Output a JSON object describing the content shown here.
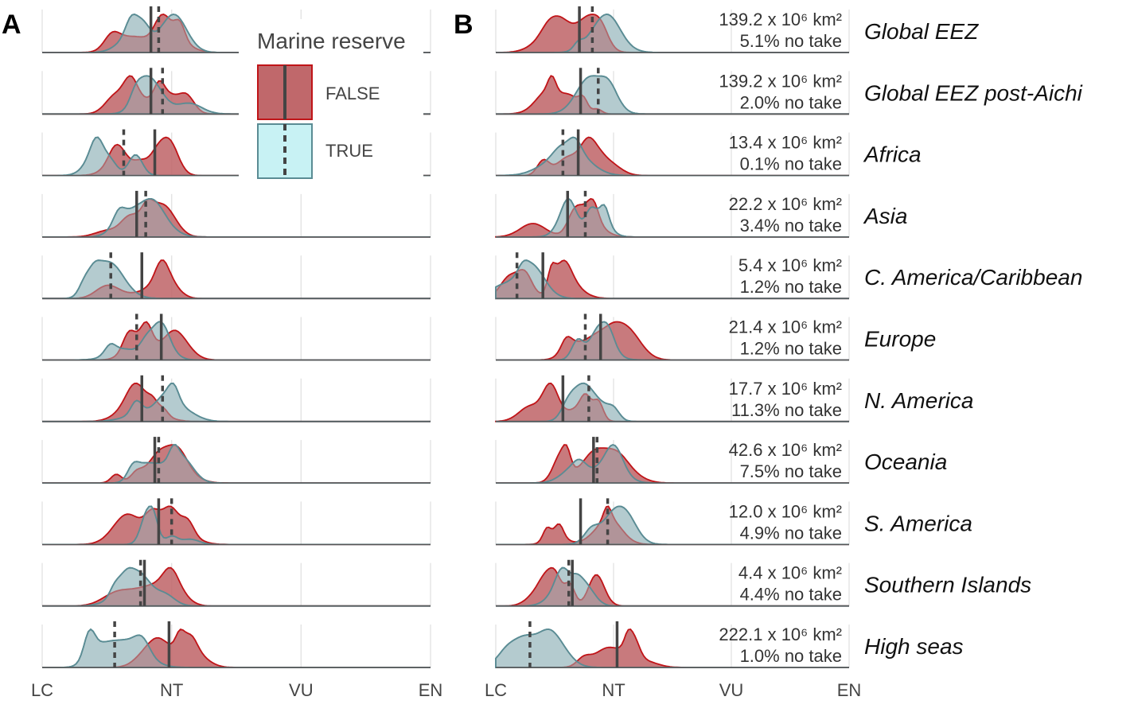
{
  "panels": {
    "A": {
      "letter": "A"
    },
    "B": {
      "letter": "B"
    }
  },
  "legend": {
    "title": "Marine reserve",
    "items": [
      {
        "label": "FALSE",
        "fill": "#c0686b",
        "stroke": "#c01418",
        "line": "solid"
      },
      {
        "label": "TRUE",
        "fill": "#c8f2f4",
        "stroke": "#5a8c94",
        "line": "dashed"
      }
    ]
  },
  "colors": {
    "false_fill": "#c0686b",
    "false_stroke": "#c01418",
    "true_fill": "#c8f2f4",
    "true_stroke": "#5a8c94",
    "overlap_fill": "#a4abb0",
    "median_line": "#444444",
    "grid": "#e3e3e3"
  },
  "chart_data": {
    "type": "area",
    "x_axis": {
      "ticks": [
        "LC",
        "NT",
        "VU",
        "EN"
      ],
      "range": [
        "LC",
        "EN"
      ]
    },
    "rows": [
      {
        "region": "Global EEZ",
        "stat_line1": "139.2 x 10⁶ km²",
        "stat_line2": "5.1% no take"
      },
      {
        "region": "Global EEZ post-Aichi",
        "stat_line1": "139.2 x 10⁶ km²",
        "stat_line2": "2.0% no take"
      },
      {
        "region": "Africa",
        "stat_line1": "13.4 x 10⁶ km²",
        "stat_line2": "0.1% no take"
      },
      {
        "region": "Asia",
        "stat_line1": "22.2 x 10⁶ km²",
        "stat_line2": "3.4% no take"
      },
      {
        "region": "C. America/Caribbean",
        "stat_line1": "5.4 x 10⁶ km²",
        "stat_line2": "1.2% no take"
      },
      {
        "region": "Europe",
        "stat_line1": "21.4 x 10⁶ km²",
        "stat_line2": "1.2% no take"
      },
      {
        "region": "N. America",
        "stat_line1": "17.7 x 10⁶ km²",
        "stat_line2": "11.3% no take"
      },
      {
        "region": "Oceania",
        "stat_line1": "42.6 x 10⁶ km²",
        "stat_line2": "7.5% no take"
      },
      {
        "region": "S. America",
        "stat_line1": "12.0 x 10⁶ km²",
        "stat_line2": "4.9% no take"
      },
      {
        "region": "Southern Islands",
        "stat_line1": "4.4 x 10⁶ km²",
        "stat_line2": "4.4% no take"
      },
      {
        "region": "High seas",
        "stat_line1": "222.1 x 10⁶ km²",
        "stat_line2": "1.0% no take"
      }
    ],
    "panel_A_medians": [
      {
        "false": 1.84,
        "true": 1.9
      },
      {
        "false": 1.84,
        "true": 1.93
      },
      {
        "false": 1.87,
        "true": 1.63
      },
      {
        "false": 1.73,
        "true": 1.8
      },
      {
        "false": 1.77,
        "true": 1.53
      },
      {
        "false": 1.92,
        "true": 1.73
      },
      {
        "false": 1.77,
        "true": 1.93
      },
      {
        "false": 1.87,
        "true": 1.9
      },
      {
        "false": 1.9,
        "true": 2.0
      },
      {
        "false": 1.79,
        "true": 1.76
      },
      {
        "false": 1.98,
        "true": 1.56
      }
    ],
    "panel_B_medians": [
      {
        "false": 1.71,
        "true": 1.82
      },
      {
        "false": 1.72,
        "true": 1.87
      },
      {
        "false": 1.7,
        "true": 1.57
      },
      {
        "false": 1.61,
        "true": 1.76
      },
      {
        "false": 1.4,
        "true": 1.18
      },
      {
        "false": 1.89,
        "true": 1.76
      },
      {
        "false": 1.57,
        "true": 1.79
      },
      {
        "false": 1.83,
        "true": 1.86
      },
      {
        "false": 1.72,
        "true": 1.95
      },
      {
        "false": 1.65,
        "true": 1.62
      },
      {
        "false": 2.03,
        "true": 1.29
      }
    ]
  }
}
